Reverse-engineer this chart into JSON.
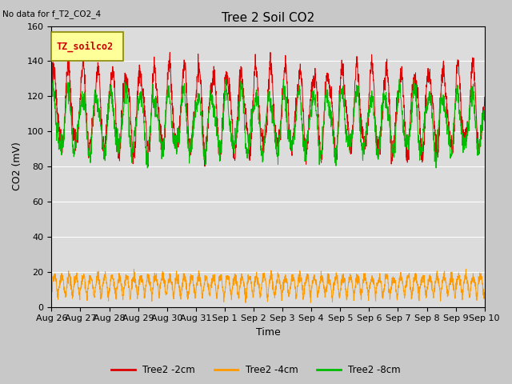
{
  "title": "Tree 2 Soil CO2",
  "ylabel": "CO2 (mV)",
  "xlabel": "Time",
  "no_data_text": "No data for f_T2_CO2_4",
  "legend_box_label": "TZ_soilco2",
  "ylim": [
    0,
    160
  ],
  "yticks": [
    0,
    20,
    40,
    60,
    80,
    100,
    120,
    140,
    160
  ],
  "x_tick_labels": [
    "Aug 26",
    "Aug 27",
    "Aug 28",
    "Aug 29",
    "Aug 30",
    "Aug 31",
    "Sep 1",
    "Sep 2",
    "Sep 3",
    "Sep 4",
    "Sep 5",
    "Sep 6",
    "Sep 7",
    "Sep 8",
    "Sep 9",
    "Sep 10"
  ],
  "line_colors": [
    "#dd0000",
    "#ff9900",
    "#00bb00"
  ],
  "line_labels": [
    "Tree2 -2cm",
    "Tree2 -4cm",
    "Tree2 -8cm"
  ],
  "bg_color": "#dcdcdc",
  "fig_color": "#c8c8c8",
  "n_days": 15,
  "points_per_day": 144,
  "title_fontsize": 11,
  "axis_fontsize": 9,
  "tick_fontsize": 8
}
